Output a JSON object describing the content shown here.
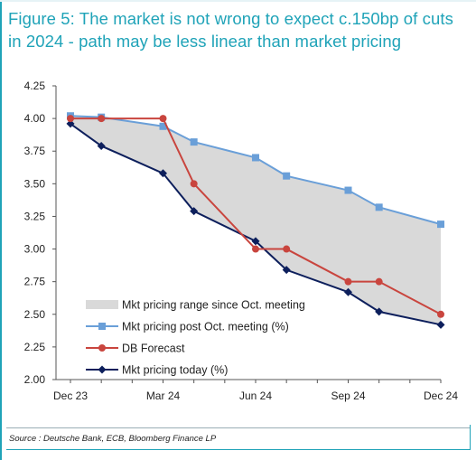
{
  "title": "Figure 5: The market is not wrong to expect c.150bp of cuts in 2024 - path may be less linear than market pricing",
  "source": "Source : Deutsche Bank, ECB, Bloomberg Finance LP",
  "chart_data": {
    "type": "line",
    "title": "",
    "xlabel": "",
    "ylabel": "",
    "ylim": [
      2.0,
      4.25
    ],
    "yticks": [
      "4.25",
      "4.00",
      "3.75",
      "3.50",
      "3.25",
      "3.00",
      "2.75",
      "2.50",
      "2.25",
      "2.00"
    ],
    "xticks": [
      "Dec 23",
      "Mar 24",
      "Jun 24",
      "Sep 24",
      "Dec 24"
    ],
    "x": [
      0,
      1,
      2,
      3,
      4,
      5,
      6,
      7,
      8,
      9,
      10,
      11,
      12
    ],
    "grid": false,
    "legend_position": "bottom-left",
    "series": [
      {
        "name": "Mkt pricing range since Oct. meeting",
        "kind": "area",
        "color": "#d9d9d9",
        "x": [
          0,
          1,
          3,
          4,
          6,
          7,
          9,
          10,
          12
        ],
        "upper": [
          4.02,
          4.01,
          3.94,
          3.82,
          3.7,
          3.56,
          3.45,
          3.32,
          3.19
        ],
        "lower": [
          3.96,
          3.79,
          3.58,
          3.29,
          3.06,
          2.84,
          2.67,
          2.52,
          2.42
        ]
      },
      {
        "name": "Mkt pricing post Oct. meeting (%)",
        "kind": "line",
        "marker": "square",
        "color": "#6a9fd8",
        "x": [
          0,
          1,
          3,
          4,
          6,
          7,
          9,
          10,
          12
        ],
        "values": [
          4.02,
          4.01,
          3.94,
          3.82,
          3.7,
          3.56,
          3.45,
          3.32,
          3.19
        ]
      },
      {
        "name": "DB Forecast",
        "kind": "line",
        "marker": "circle",
        "color": "#c9453e",
        "x": [
          0,
          1,
          3,
          4,
          6,
          7,
          9,
          10,
          12
        ],
        "values": [
          4.0,
          4.0,
          4.0,
          3.5,
          3.0,
          3.0,
          2.75,
          2.75,
          2.5
        ]
      },
      {
        "name": "Mkt pricing today (%)",
        "kind": "line",
        "marker": "diamond",
        "color": "#0d1f5c",
        "x": [
          0,
          1,
          3,
          4,
          6,
          7,
          9,
          10,
          12
        ],
        "values": [
          3.96,
          3.79,
          3.58,
          3.29,
          3.06,
          2.84,
          2.67,
          2.52,
          2.42
        ]
      }
    ]
  }
}
